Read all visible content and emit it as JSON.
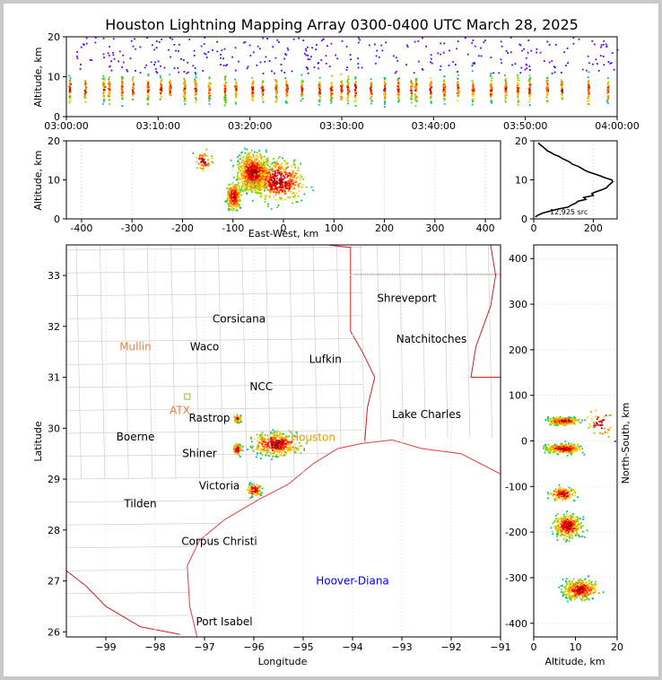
{
  "title": "Houston Lightning Mapping Array 0300-0400 UTC March 28, 2025",
  "chart_data": [
    {
      "type": "scatter",
      "panel": "altitude-time",
      "ylabel": "Altitude, km",
      "xlabel": "",
      "xlim": [
        "03:00:00",
        "04:00:00"
      ],
      "ylim": [
        0,
        20
      ],
      "x_ticks": [
        "03:00:00",
        "03:10:00",
        "03:20:00",
        "03:30:00",
        "03:40:00",
        "03:50:00",
        "04:00:00"
      ],
      "y_ticks": [
        0,
        10,
        20
      ],
      "flash_times_min": [
        0.3,
        2.0,
        4.0,
        4.6,
        6.0,
        7.2,
        8.8,
        10.2,
        11.2,
        12.8,
        14.0,
        15.5,
        17.2,
        18.4,
        20.2,
        21.3,
        22.8,
        23.9,
        25.6,
        27.5,
        28.8,
        29.9,
        30.6,
        31.4,
        33.1,
        34.6,
        36.1,
        37.5,
        38.0,
        39.6,
        41.1,
        42.6,
        44.2,
        46.2,
        47.8,
        49.1,
        50.4,
        52.3,
        53.9,
        56.8,
        58.9
      ]
    },
    {
      "type": "scatter",
      "panel": "altitude-east-west",
      "xlabel": "East-West, km",
      "ylabel": "Altitude, km",
      "xlim": [
        -430,
        430
      ],
      "ylim": [
        0,
        20
      ],
      "x_ticks": [
        -400,
        -300,
        -200,
        -100,
        0,
        100,
        200,
        300,
        400
      ],
      "y_ticks": [
        0,
        10,
        20
      ]
    },
    {
      "type": "line",
      "panel": "altitude-histogram",
      "annotation": "12,925 src",
      "xlim": [
        0,
        280
      ],
      "ylim": [
        0,
        20
      ],
      "x_ticks": [
        0,
        200
      ],
      "y_ticks": [
        0,
        10,
        20
      ],
      "series": [
        {
          "altitude_km": [
            0.5,
            1,
            1.5,
            2,
            2.5,
            3,
            3.5,
            4,
            4.5,
            5,
            5.5,
            6,
            6.5,
            7,
            7.5,
            8,
            8.5,
            9,
            9.5,
            10,
            10.5,
            11,
            11.5,
            12,
            12.5,
            13,
            13.5,
            14,
            14.5,
            15,
            15.5,
            16,
            16.5,
            17,
            17.5,
            18,
            18.5,
            19,
            19.5
          ],
          "count": [
            5,
            15,
            30,
            55,
            80,
            115,
            125,
            140,
            148,
            175,
            168,
            200,
            195,
            210,
            230,
            245,
            250,
            258,
            265,
            262,
            240,
            225,
            205,
            185,
            170,
            160,
            148,
            130,
            122,
            110,
            95,
            85,
            68,
            58,
            45,
            38,
            30,
            22,
            15
          ]
        }
      ]
    },
    {
      "type": "scatter",
      "panel": "plan-view-map",
      "xlabel": "Longitude",
      "ylabel": "Latitude",
      "xlim": [
        -99.8,
        -91.0
      ],
      "ylim": [
        25.9,
        33.6
      ],
      "x_ticks": [
        -99,
        -98,
        -97,
        -96,
        -95,
        -94,
        -93,
        -92,
        -91
      ],
      "y_ticks": [
        26,
        27,
        28,
        29,
        30,
        31,
        32,
        33
      ],
      "places": [
        {
          "name": "Shreveport",
          "lon": -92.9,
          "lat": 32.55,
          "color": "#000000"
        },
        {
          "name": "Corsicana",
          "lon": -96.3,
          "lat": 32.15,
          "color": "#000000"
        },
        {
          "name": "Natchitoches",
          "lon": -92.4,
          "lat": 31.75,
          "color": "#000000"
        },
        {
          "name": "Mullin",
          "lon": -98.4,
          "lat": 31.6,
          "color": "#f08040"
        },
        {
          "name": "Waco",
          "lon": -97.0,
          "lat": 31.6,
          "color": "#000000"
        },
        {
          "name": "Lufkin",
          "lon": -94.55,
          "lat": 31.35,
          "color": "#000000"
        },
        {
          "name": "NCC",
          "lon": -95.85,
          "lat": 30.82,
          "color": "#000000"
        },
        {
          "name": "ATX",
          "lon": -97.5,
          "lat": 30.35,
          "color": "#f08040"
        },
        {
          "name": "Rastrop",
          "lon": -96.9,
          "lat": 30.2,
          "color": "#000000"
        },
        {
          "name": "Lake Charles",
          "lon": -92.5,
          "lat": 30.27,
          "color": "#000000"
        },
        {
          "name": "Boerne",
          "lon": -98.4,
          "lat": 29.83,
          "color": "#000000"
        },
        {
          "name": "Houston",
          "lon": -94.8,
          "lat": 29.82,
          "color": "#e0a000"
        },
        {
          "name": "Shiner",
          "lon": -97.1,
          "lat": 29.5,
          "color": "#000000"
        },
        {
          "name": "Victoria",
          "lon": -96.7,
          "lat": 28.87,
          "color": "#000000"
        },
        {
          "name": "Tilden",
          "lon": -98.3,
          "lat": 28.52,
          "color": "#000000"
        },
        {
          "name": "Corpus Christi",
          "lon": -96.7,
          "lat": 27.78,
          "color": "#000000"
        },
        {
          "name": "Hoover-Diana",
          "lon": -94.0,
          "lat": 27.0,
          "color": "#0000ff"
        },
        {
          "name": "Port Isabel",
          "lon": -96.6,
          "lat": 26.2,
          "color": "#000000"
        }
      ]
    },
    {
      "type": "scatter",
      "panel": "north-south-altitude",
      "xlabel": "Altitude, km",
      "ylabel": "North-South, km",
      "xlim": [
        0,
        20
      ],
      "ylim": [
        -430,
        430
      ],
      "x_ticks": [
        0,
        10,
        20
      ],
      "y_ticks": [
        -400,
        -300,
        -200,
        -100,
        0,
        100,
        200,
        300,
        400
      ]
    }
  ]
}
